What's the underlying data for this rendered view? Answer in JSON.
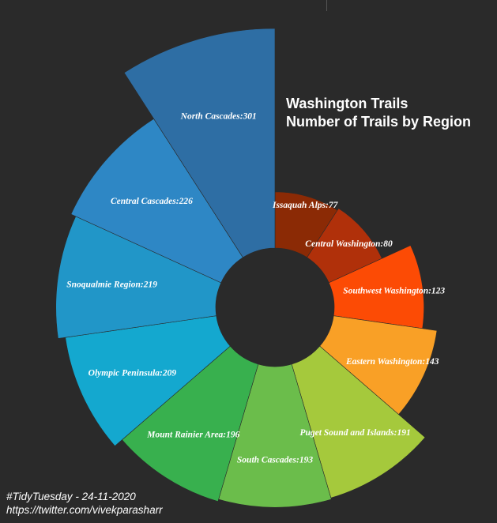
{
  "title": {
    "line1": "Washington Trails",
    "line2": "Number of Trails by Region"
  },
  "caption": {
    "line1": "#TidyTuesday - 24-11-2020",
    "line2": "https://twitter.com/vivekparasharr"
  },
  "chart_data": {
    "type": "pie",
    "variant": "radial-bar (nightingale rose)",
    "categories": [
      "Issaquah Alps",
      "Central Washington",
      "Southwest Washington",
      "Eastern Washington",
      "Puget Sound and Islands",
      "South Cascades",
      "Mount Rainier Area",
      "Olympic Peninsula",
      "Snoqualmie Region",
      "Central Cascades",
      "North Cascades"
    ],
    "values": [
      77,
      80,
      123,
      143,
      191,
      193,
      196,
      209,
      219,
      226,
      301
    ],
    "colors": [
      "#8b2a05",
      "#b0300a",
      "#fc4b05",
      "#f9a026",
      "#a5c93c",
      "#6bbd4b",
      "#38b04e",
      "#14a8cf",
      "#2196c8",
      "#2e87c5",
      "#2e6ea4"
    ],
    "label_separator": ":"
  }
}
